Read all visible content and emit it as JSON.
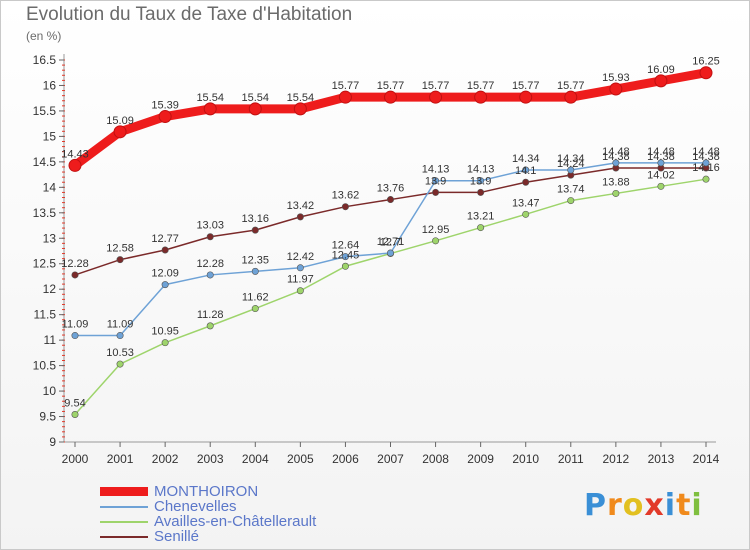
{
  "header": {
    "title": "Evolution du Taux de Taxe d'Habitation",
    "unit": "(en %)"
  },
  "logo": {
    "letters": [
      "P",
      "r",
      "o",
      "x",
      "i",
      "t",
      "i"
    ],
    "colors": [
      "#3a8fd6",
      "#f08a1c",
      "#e2c020",
      "#e23a2a",
      "#3a8fd6",
      "#f08a1c",
      "#7fbf3f"
    ]
  },
  "chart_data": {
    "type": "line",
    "title": "Evolution du Taux de Taxe d'Habitation",
    "ylabel": "(en %)",
    "xlabel": "",
    "x": [
      "2000",
      "2001",
      "2002",
      "2003",
      "2004",
      "2005",
      "2006",
      "2007",
      "2008",
      "2009",
      "2010",
      "2011",
      "2012",
      "2013",
      "2014"
    ],
    "ylim": [
      9,
      16.5
    ],
    "yticks": [
      "9",
      "9.5",
      "10",
      "10.5",
      "11",
      "11.5",
      "12",
      "12.5",
      "13",
      "13.5",
      "14",
      "14.5",
      "15",
      "15.5",
      "16",
      "16.5"
    ],
    "grid": false,
    "legend_position": "bottom-left",
    "series": [
      {
        "name": "MONTHOIRON",
        "color": "#ee1c1c",
        "values": [
          14.43,
          15.09,
          15.39,
          15.54,
          15.54,
          15.54,
          15.77,
          15.77,
          15.77,
          15.77,
          15.77,
          15.77,
          15.93,
          16.09,
          16.25
        ],
        "labels": [
          "14.43",
          "15.09",
          "15.39",
          "15.54",
          "15.54",
          "15.54",
          "15.77",
          "15.77",
          "15.77",
          "15.77",
          "15.77",
          "15.77",
          "15.93",
          "16.09",
          "16.25"
        ]
      },
      {
        "name": "Chenevelles",
        "color": "#6ea2d6",
        "values": [
          11.09,
          11.09,
          12.09,
          12.28,
          12.35,
          12.42,
          12.64,
          12.71,
          14.13,
          14.13,
          14.34,
          14.34,
          14.48,
          14.48,
          14.48
        ],
        "labels": [
          "11.09",
          "11.09",
          "12.09",
          "12.28",
          "12.35",
          "12.42",
          "12.64",
          "12.71",
          "14.13",
          "14.13",
          "14.34",
          "14.34",
          "14.48",
          "14.48",
          "14.48"
        ]
      },
      {
        "name": "Availles-en-Châtellerault",
        "color": "#9ed46b",
        "values": [
          9.54,
          10.53,
          10.95,
          11.28,
          11.62,
          11.97,
          12.45,
          12.7,
          12.95,
          13.21,
          13.47,
          13.74,
          13.88,
          14.02,
          14.16
        ],
        "labels": [
          "9.54",
          "10.53",
          "10.95",
          "11.28",
          "11.62",
          "11.97",
          "12.45",
          "12.7",
          "12.95",
          "13.21",
          "13.47",
          "13.74",
          "13.88",
          "14.02",
          "14.16"
        ]
      },
      {
        "name": "Senillé",
        "color": "#7b2a2a",
        "values": [
          12.28,
          12.58,
          12.77,
          13.03,
          13.16,
          13.42,
          13.62,
          13.76,
          13.9,
          13.9,
          14.1,
          14.24,
          14.38,
          14.38,
          14.38
        ],
        "labels": [
          "12.28",
          "12.58",
          "12.77",
          "13.03",
          "13.16",
          "13.42",
          "13.62",
          "13.76",
          "13.9",
          "13.9",
          "14.1",
          "14.24",
          "14.38",
          "14.38",
          "14.38"
        ]
      }
    ]
  }
}
